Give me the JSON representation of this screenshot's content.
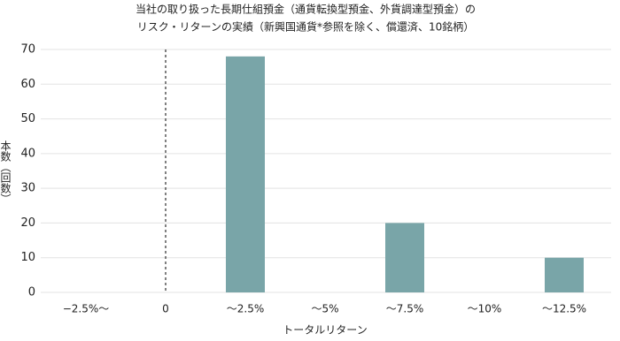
{
  "chart_data": {
    "type": "bar",
    "title": [
      "当社の取り扱った長期仕組預金（通貨転換型預金、外貨調達型預金）の",
      "リスク・リターンの実績（新興国通貨*参照を除く、償還済、10銘柄）"
    ],
    "x_label": "トータルリターン",
    "y_label": "本数（回数）",
    "categories": [
      "−2.5%〜",
      "0",
      "〜2.5%",
      "〜5%",
      "〜7.5%",
      "〜10%",
      "〜12.5%"
    ],
    "values": [
      0,
      0,
      68,
      0,
      20,
      0,
      10
    ],
    "color": "#79a5a8",
    "ylim": [
      0,
      70
    ],
    "yticks": [
      0,
      10,
      20,
      30,
      40,
      50,
      60,
      70
    ],
    "grid": true
  }
}
